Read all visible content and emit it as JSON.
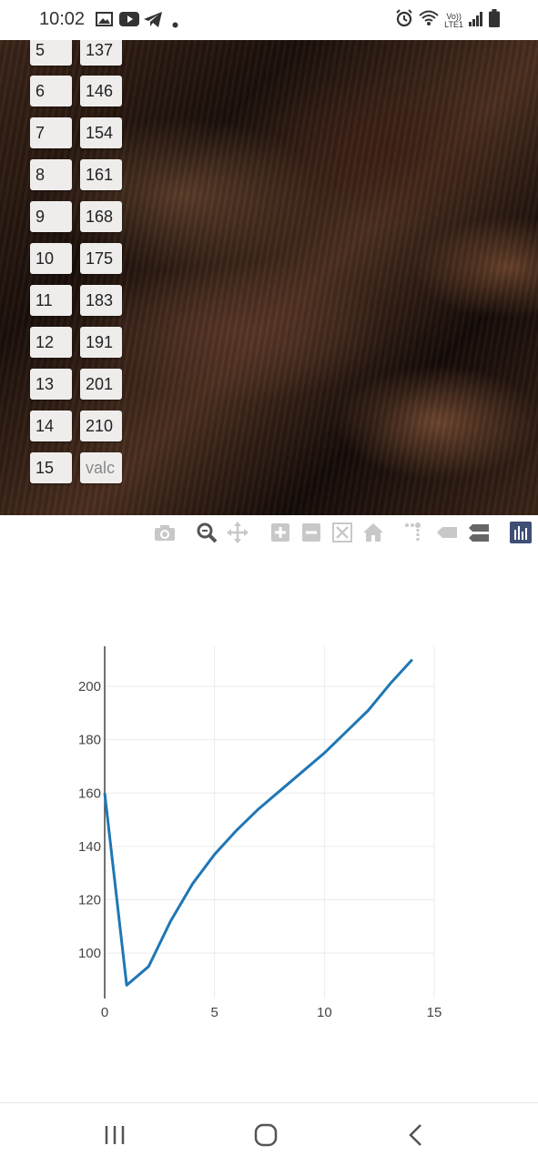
{
  "status_bar": {
    "time": "10:02",
    "left_icons": [
      "gallery-icon",
      "youtube-icon",
      "telegram-icon",
      "dot-icon"
    ],
    "right_icons": [
      "alarm-icon",
      "wifi-icon",
      "volte-icon",
      "signal-icon",
      "battery-icon"
    ],
    "volte_line1": "Vo))",
    "volte_line2": "LTE1"
  },
  "table": {
    "rows": [
      {
        "index": "5",
        "value": "137"
      },
      {
        "index": "6",
        "value": "146"
      },
      {
        "index": "7",
        "value": "154"
      },
      {
        "index": "8",
        "value": "161"
      },
      {
        "index": "9",
        "value": "168"
      },
      {
        "index": "10",
        "value": "175"
      },
      {
        "index": "11",
        "value": "183"
      },
      {
        "index": "12",
        "value": "191"
      },
      {
        "index": "13",
        "value": "201"
      },
      {
        "index": "14",
        "value": "210"
      },
      {
        "index": "15",
        "value": ""
      }
    ],
    "value_placeholder": "valc"
  },
  "modebar": {
    "buttons": [
      "camera-icon",
      "zoom-icon",
      "pan-icon",
      "zoom-in-icon",
      "zoom-out-icon",
      "autoscale-icon",
      "home-icon",
      "spike-lines-icon",
      "hover-closest-icon",
      "hover-compare-icon",
      "plotly-logo-icon"
    ]
  },
  "chart_data": {
    "type": "line",
    "x": [
      0,
      1,
      2,
      3,
      4,
      5,
      6,
      7,
      8,
      9,
      10,
      11,
      12,
      13,
      14
    ],
    "series": [
      {
        "values": [
          160,
          88,
          95,
          112,
          126,
          137,
          146,
          154,
          161,
          168,
          175,
          183,
          191,
          201,
          210
        ]
      }
    ],
    "title": "",
    "xlabel": "",
    "ylabel": "",
    "xlim": [
      0,
      15
    ],
    "ylim": [
      83,
      215
    ],
    "x_ticks": [
      "0",
      "5",
      "10",
      "15"
    ],
    "y_ticks": [
      "100",
      "120",
      "140",
      "160",
      "180",
      "200"
    ],
    "grid": true,
    "line_color": "#1f77b4"
  },
  "nav": {
    "buttons": [
      "recents-icon",
      "home-icon",
      "back-icon"
    ]
  }
}
